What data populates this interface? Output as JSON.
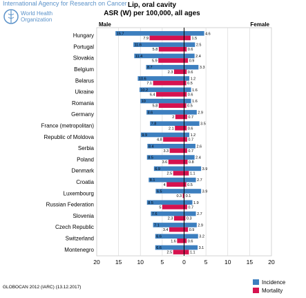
{
  "header": {
    "agency": "International Agency for Research on Cancer",
    "org_line1": "World Health",
    "org_line2": "Organization",
    "title_line1": "Lip, oral cavity",
    "title_line2": "ASR (W) per 100,000, all ages"
  },
  "footer": "GLOBOCAN 2012 (IARC) (13.12.2017)",
  "colors": {
    "incidence": "#3d7fbf",
    "mortality": "#d6124f"
  },
  "chart_data": {
    "type": "bar",
    "orientation": "horizontal-butterfly",
    "panels": {
      "left": "Male",
      "right": "Female"
    },
    "categories": [
      "Hungary",
      "Portugal",
      "Slovakia",
      "Belgium",
      "Belarus",
      "Ukraine",
      "Romania",
      "Germany",
      "France (metropolitan)",
      "Republic of Moldova",
      "Serbia",
      "Poland",
      "Denmark",
      "Croatia",
      "Luxembourg",
      "Russian Federation",
      "Slovenia",
      "Czech Republic",
      "Switzerland",
      "Montenegro"
    ],
    "series": [
      {
        "name": "Incidence",
        "male": [
          15.7,
          11.6,
          11.4,
          8.7,
          10.6,
          10.2,
          10,
          8.6,
          7.8,
          9.9,
          8.4,
          8.5,
          6.9,
          8.1,
          6.5,
          8.5,
          7.6,
          7.1,
          6.6,
          6.6
        ],
        "female": [
          4.6,
          2.5,
          2.4,
          3.3,
          1.2,
          1.6,
          1.6,
          2.9,
          3.5,
          1.2,
          2.6,
          2.4,
          3.9,
          2.7,
          3.9,
          1.9,
          2.7,
          2.9,
          3.2,
          3.1
        ]
      },
      {
        "name": "Mortality",
        "male": [
          7.9,
          5.8,
          5.9,
          2.3,
          7.1,
          6.4,
          5.8,
          2.0,
          2.1,
          4.8,
          3.3,
          3.6,
          2.5,
          4.0,
          0.3,
          5.0,
          2.3,
          3.4,
          1.6,
          2.5
        ],
        "female": [
          1.5,
          0.6,
          0.9,
          0.6,
          0.5,
          0.6,
          0.5,
          0.7,
          0.6,
          0.7,
          0.7,
          0.8,
          1.1,
          0.5,
          0.1,
          0.7,
          0.3,
          0.9,
          0.6,
          1.1
        ]
      }
    ],
    "value_labels": {
      "male_incidence": [
        "15.7",
        "11.6",
        "11.4",
        "8.7",
        "10.6",
        "10.2",
        "10",
        "8.6",
        "7.8",
        "9.9",
        "8.4",
        "8.5",
        "6.9",
        "8.1",
        "6.5",
        "8.5",
        "7.6",
        "7.1",
        "6.6",
        "6.6"
      ],
      "male_mortality": [
        "7.9",
        "5.8",
        "5.9",
        "2.3",
        "7.1",
        "6.4",
        "5.8",
        "2",
        "2.1",
        "4.8",
        "3.3",
        "3.6",
        "2.5",
        "4",
        "0.3",
        "5",
        "2.3",
        "3.4",
        "1.6",
        "2.5"
      ],
      "female_incidence": [
        "4.6",
        "2.5",
        "2.4",
        "3.3",
        "1.2",
        "1.6",
        "1.6",
        "2.9",
        "3.5",
        "1.2",
        "2.6",
        "2.4",
        "3.9",
        "2.7",
        "3.9",
        "1.9",
        "2.7",
        "2.9",
        "3.2",
        "3.1"
      ],
      "female_mortality": [
        "1.5",
        "0.6",
        "0.9",
        "0.6",
        "0.5",
        "0.6",
        "0.5",
        "0.7",
        "0.6",
        "0.7",
        "0.7",
        "0.8",
        "1.1",
        "0.5",
        "0.1",
        "0.7",
        "0.3",
        "0.9",
        "0.6",
        "1.1"
      ]
    },
    "xlim": [
      -20,
      20
    ],
    "x_ticks": [
      "20",
      "15",
      "10",
      "5",
      "0",
      "5",
      "10",
      "15",
      "20"
    ],
    "grid": true,
    "legend_position": "bottom-right"
  }
}
